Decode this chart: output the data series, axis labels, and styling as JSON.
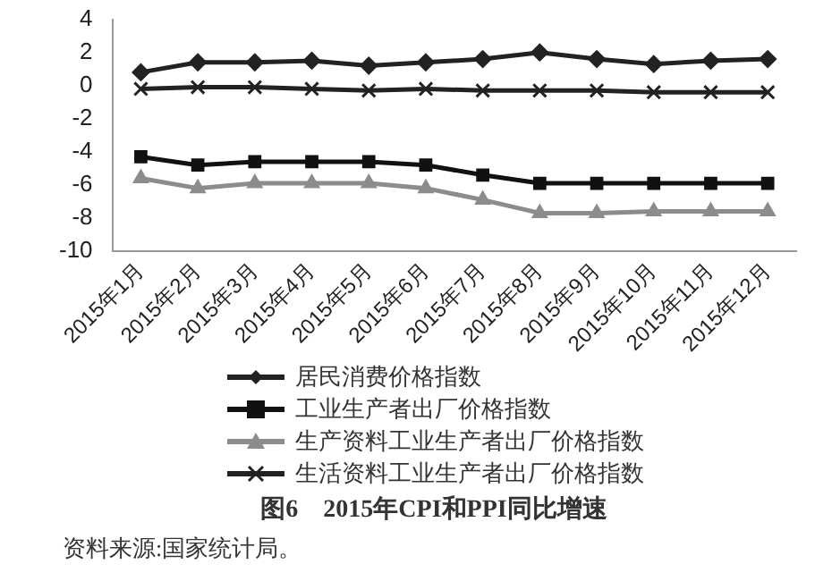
{
  "chart_data": {
    "type": "line",
    "title": "图6　2015年CPI和PPI同比增速",
    "annotations": [
      "资料来源:国家统计局。"
    ],
    "categories": [
      "2015年1月",
      "2015年2月",
      "2015年3月",
      "2015年4月",
      "2015年5月",
      "2015年6月",
      "2015年7月",
      "2015年8月",
      "2015年9月",
      "2015年10月",
      "2015年11月",
      "2015年12月"
    ],
    "series": [
      {
        "name": "居民消费价格指数",
        "color": "#222222",
        "marker": "diamond",
        "values": [
          0.8,
          1.4,
          1.4,
          1.5,
          1.2,
          1.4,
          1.6,
          2.0,
          1.6,
          1.3,
          1.5,
          1.6
        ]
      },
      {
        "name": "工业生产者出厂价格指数",
        "color": "#111111",
        "marker": "square",
        "values": [
          -4.3,
          -4.8,
          -4.6,
          -4.6,
          -4.6,
          -4.8,
          -5.4,
          -5.9,
          -5.9,
          -5.9,
          -5.9,
          -5.9
        ]
      },
      {
        "name": "生产资料工业生产者出厂价格指数",
        "color": "#8c8c8c",
        "marker": "triangle",
        "values": [
          -5.6,
          -6.2,
          -5.9,
          -5.9,
          -5.9,
          -6.2,
          -6.9,
          -7.7,
          -7.7,
          -7.6,
          -7.6,
          -7.6
        ]
      },
      {
        "name": "生活资料工业生产者出厂价格指数",
        "color": "#222222",
        "marker": "cross",
        "values": [
          -0.2,
          -0.1,
          -0.1,
          -0.2,
          -0.3,
          -0.2,
          -0.3,
          -0.3,
          -0.3,
          -0.4,
          -0.4,
          -0.4
        ]
      }
    ],
    "ylim": [
      -10,
      4
    ],
    "yticks": [
      -10,
      -8,
      -6,
      -4,
      -2,
      0,
      2,
      4
    ],
    "grid": false,
    "legend": "bottom",
    "line_style": "solid"
  }
}
